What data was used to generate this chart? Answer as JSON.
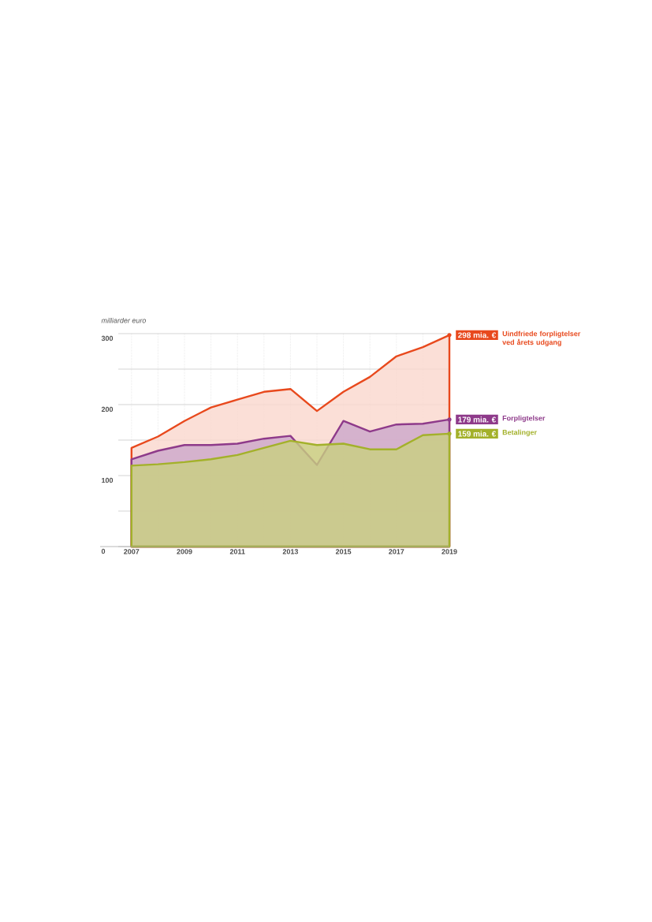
{
  "chart_data": {
    "type": "area",
    "ylabel": "milliarder euro",
    "x": [
      2007,
      2008,
      2009,
      2010,
      2011,
      2012,
      2013,
      2014,
      2015,
      2016,
      2017,
      2018,
      2019
    ],
    "xlim": [
      2006.5,
      2019
    ],
    "xticks": [
      2007,
      {
        "value": 2008,
        "label": null
      },
      2009,
      {
        "value": 2010,
        "label": null
      },
      2011,
      {
        "value": 2012,
        "label": null
      },
      2013,
      {
        "value": 2014,
        "label": null
      },
      2015,
      {
        "value": 2016,
        "label": null
      },
      2017,
      {
        "value": 2018,
        "label": null
      },
      2019
    ],
    "ylim": [
      0,
      300
    ],
    "yticks": [
      0,
      {
        "value": 50,
        "label": null
      },
      100,
      {
        "value": 150,
        "label": null
      },
      200,
      {
        "value": 250,
        "label": null
      },
      300
    ],
    "grid": true,
    "legend": false,
    "series": [
      {
        "name": "Uindfriede forpligtelser ved årets udgang",
        "color": "#e8491d",
        "values": [
          139,
          155,
          177,
          196,
          207,
          218,
          222,
          191,
          218,
          239,
          268,
          281,
          298
        ],
        "value_labels": [
          null,
          null,
          null,
          null,
          null,
          null,
          null,
          null,
          null,
          null,
          null,
          null,
          "298 mia. €"
        ]
      },
      {
        "name": "Forpligtelser",
        "color": "#8e3a8a",
        "values": [
          123,
          135,
          143,
          143,
          145,
          152,
          156,
          115,
          177,
          162,
          172,
          173,
          179
        ],
        "value_labels": [
          null,
          null,
          null,
          null,
          null,
          null,
          null,
          null,
          null,
          null,
          null,
          null,
          "179 mia. €"
        ]
      },
      {
        "name": "Betalinger",
        "color": "#a3b12a",
        "values": [
          114,
          116,
          119,
          123,
          129,
          139,
          149,
          143,
          145,
          137,
          137,
          157,
          159
        ],
        "value_labels": [
          null,
          null,
          null,
          null,
          null,
          null,
          null,
          null,
          null,
          null,
          null,
          null,
          "159 mia. €"
        ]
      }
    ]
  }
}
